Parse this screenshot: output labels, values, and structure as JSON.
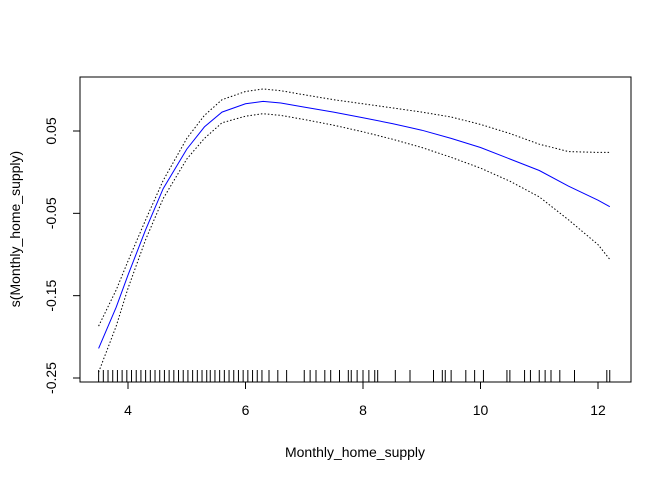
{
  "chart_data": {
    "type": "line",
    "title": "",
    "xlabel": "Monthly_home_supply",
    "ylabel": "s(Monthly_home_supply)",
    "xlim": [
      3.4,
      12.4
    ],
    "ylim": [
      -0.25,
      0.1
    ],
    "x_ticks": [
      4,
      6,
      8,
      10,
      12
    ],
    "x_tick_labels": [
      "4",
      "6",
      "8",
      "10",
      "12"
    ],
    "y_ticks": [
      0.05,
      -0.05,
      -0.15,
      -0.25
    ],
    "y_tick_labels": [
      "0.05",
      "-0.05",
      "-0.15",
      "-0.25"
    ],
    "grid": false,
    "legend": "none",
    "colors": {
      "fit": "#0000ff",
      "band": "#000000",
      "axes": "#000000"
    },
    "series": [
      {
        "role": "fit",
        "style": "solid",
        "x": [
          3.5,
          3.8,
          4.0,
          4.3,
          4.6,
          5.0,
          5.3,
          5.6,
          6.0,
          6.3,
          6.6,
          7.0,
          7.5,
          8.0,
          8.5,
          9.0,
          9.5,
          10.0,
          10.5,
          11.0,
          11.5,
          12.0,
          12.2
        ],
        "y": [
          -0.214,
          -0.164,
          -0.125,
          -0.07,
          -0.02,
          0.028,
          0.055,
          0.073,
          0.083,
          0.086,
          0.084,
          0.079,
          0.073,
          0.066,
          0.059,
          0.051,
          0.041,
          0.03,
          0.016,
          0.002,
          -0.017,
          -0.034,
          -0.042
        ]
      },
      {
        "role": "upper-band",
        "style": "dotted",
        "x": [
          3.5,
          3.8,
          4.0,
          4.3,
          4.6,
          5.0,
          5.3,
          5.6,
          6.0,
          6.3,
          6.6,
          7.0,
          7.5,
          8.0,
          8.5,
          9.0,
          9.5,
          10.0,
          10.5,
          11.0,
          11.5,
          12.0,
          12.2
        ],
        "y": [
          -0.187,
          -0.143,
          -0.108,
          -0.058,
          -0.01,
          0.041,
          0.069,
          0.088,
          0.098,
          0.101,
          0.099,
          0.094,
          0.088,
          0.083,
          0.078,
          0.073,
          0.067,
          0.058,
          0.047,
          0.034,
          0.025,
          0.024,
          0.024
        ]
      },
      {
        "role": "lower-band",
        "style": "dotted",
        "x": [
          3.5,
          3.8,
          4.0,
          4.3,
          4.6,
          5.0,
          5.3,
          5.6,
          6.0,
          6.3,
          6.6,
          7.0,
          7.5,
          8.0,
          8.5,
          9.0,
          9.5,
          10.0,
          10.5,
          11.0,
          11.5,
          12.0,
          12.2
        ],
        "y": [
          -0.243,
          -0.187,
          -0.141,
          -0.082,
          -0.032,
          0.016,
          0.041,
          0.06,
          0.068,
          0.071,
          0.069,
          0.064,
          0.057,
          0.049,
          0.04,
          0.03,
          0.018,
          0.005,
          -0.011,
          -0.03,
          -0.058,
          -0.088,
          -0.106
        ]
      }
    ],
    "rug": [
      3.5,
      3.58,
      3.66,
      3.74,
      3.82,
      3.9,
      3.98,
      4.06,
      4.14,
      4.22,
      4.3,
      4.38,
      4.46,
      4.54,
      4.62,
      4.7,
      4.78,
      4.86,
      4.94,
      5.02,
      5.1,
      5.18,
      5.26,
      5.34,
      5.4,
      5.48,
      5.56,
      5.64,
      5.72,
      5.8,
      5.88,
      5.96,
      6.04,
      6.12,
      6.2,
      6.28,
      6.4,
      6.55,
      6.7,
      7.0,
      7.1,
      7.2,
      7.35,
      7.45,
      7.6,
      7.75,
      7.8,
      7.9,
      8.0,
      8.1,
      8.2,
      8.25,
      8.55,
      8.8,
      9.2,
      9.35,
      9.4,
      9.5,
      9.75,
      9.9,
      10.05,
      10.45,
      10.5,
      10.75,
      10.85,
      11.0,
      11.1,
      11.2,
      11.35,
      11.6,
      12.15,
      12.2
    ]
  }
}
